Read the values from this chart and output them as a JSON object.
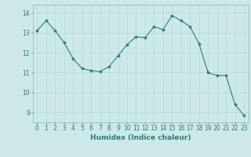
{
  "x": [
    0,
    1,
    2,
    3,
    4,
    5,
    6,
    7,
    8,
    9,
    10,
    11,
    12,
    13,
    14,
    15,
    16,
    17,
    18,
    19,
    20,
    21,
    22,
    23
  ],
  "y": [
    13.1,
    13.6,
    13.1,
    12.5,
    11.7,
    11.2,
    11.1,
    11.05,
    11.3,
    11.85,
    12.4,
    12.8,
    12.75,
    13.3,
    13.15,
    13.85,
    13.6,
    13.3,
    12.45,
    11.0,
    10.85,
    10.85,
    9.4,
    8.85
  ],
  "line_color": "#2d7d6e",
  "marker": "D",
  "marker_size": 1.8,
  "line_width": 0.8,
  "bg_color": "#cce8e8",
  "grid_color": "#b8d8d8",
  "xlabel": "Humidex (Indice chaleur)",
  "xlabel_fontsize": 6.5,
  "tick_fontsize": 5.5,
  "ylim": [
    8.5,
    14.4
  ],
  "yticks": [
    9,
    10,
    11,
    12,
    13,
    14
  ],
  "xticks": [
    0,
    1,
    2,
    3,
    4,
    5,
    6,
    7,
    8,
    9,
    10,
    11,
    12,
    13,
    14,
    15,
    16,
    17,
    18,
    19,
    20,
    21,
    22,
    23
  ]
}
